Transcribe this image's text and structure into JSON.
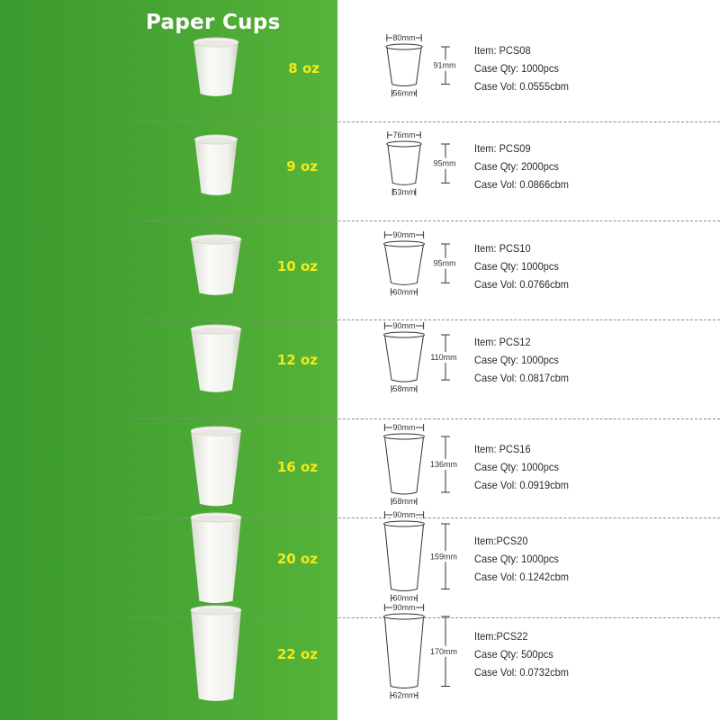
{
  "title": "Paper Cups",
  "colors": {
    "panel": "#4aa834",
    "size_text": "#f3ea1a"
  },
  "cups": [
    {
      "size": "8 oz",
      "item": "Item: PCS08",
      "qty": "Case Qty: 1000pcs",
      "vol": "Case Vol: 0.0555cbm",
      "top": "80mm",
      "height": "91mm",
      "bottom": "56mm",
      "top_mm": 80,
      "height_mm": 91,
      "bottom_mm": 56
    },
    {
      "size": "9 oz",
      "item": "Item: PCS09",
      "qty": "Case Qty: 2000pcs",
      "vol": "Case Vol: 0.0866cbm",
      "top": "76mm",
      "height": "95mm",
      "bottom": "53mm",
      "top_mm": 76,
      "height_mm": 95,
      "bottom_mm": 53
    },
    {
      "size": "10 oz",
      "item": "Item: PCS10",
      "qty": "Case Qty: 1000pcs",
      "vol": "Case Vol: 0.0766cbm",
      "top": "90mm",
      "height": "95mm",
      "bottom": "60mm",
      "top_mm": 90,
      "height_mm": 95,
      "bottom_mm": 60
    },
    {
      "size": "12 oz",
      "item": "Item: PCS12",
      "qty": "Case Qty: 1000pcs",
      "vol": "Case Vol: 0.0817cbm",
      "top": "90mm",
      "height": "110mm",
      "bottom": "58mm",
      "top_mm": 90,
      "height_mm": 110,
      "bottom_mm": 58
    },
    {
      "size": "16 oz",
      "item": "Item: PCS16",
      "qty": "Case Qty: 1000pcs",
      "vol": "Case Vol: 0.0919cbm",
      "top": "90mm",
      "height": "136mm",
      "bottom": "58mm",
      "top_mm": 90,
      "height_mm": 136,
      "bottom_mm": 58
    },
    {
      "size": "20 oz",
      "item": "Item:PCS20",
      "qty": "Case Qty: 1000pcs",
      "vol": "Case Vol: 0.1242cbm",
      "top": "90mm",
      "height": "159mm",
      "bottom": "60mm",
      "top_mm": 90,
      "height_mm": 159,
      "bottom_mm": 60
    },
    {
      "size": "22 oz",
      "item": "Item:PCS22",
      "qty": "Case Qty: 500pcs",
      "vol": "Case Vol: 0.0732cbm",
      "top": "90mm",
      "height": "170mm",
      "bottom": "62mm",
      "top_mm": 90,
      "height_mm": 170,
      "bottom_mm": 62
    }
  ]
}
